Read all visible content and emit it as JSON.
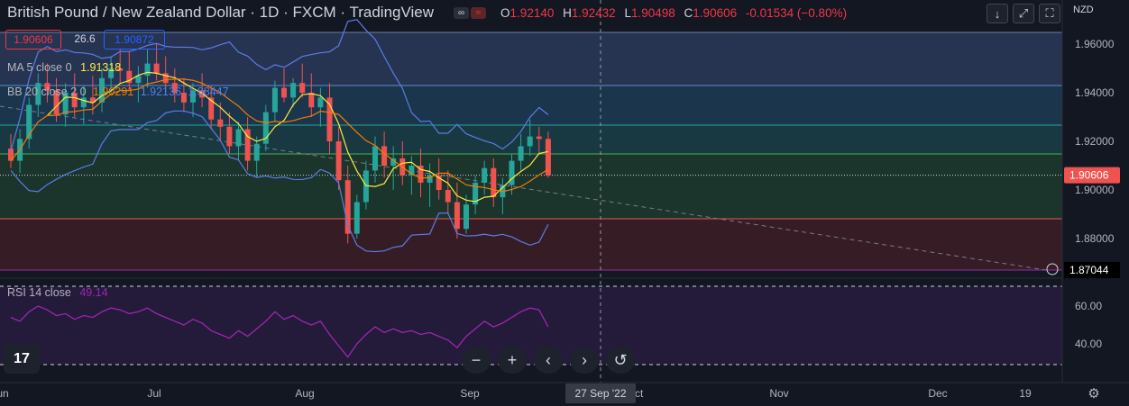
{
  "header": {
    "title": "British Pound / New Zealand Dollar · 1D · FXCM · TradingView",
    "ohlc": {
      "o_label": "O",
      "o": "1.92140",
      "h_label": "H",
      "h": "1.92432",
      "l_label": "L",
      "l": "1.90498",
      "c_label": "C",
      "c": "1.90606",
      "change": "-0.01534 (−0.80%)"
    }
  },
  "price_boxes": {
    "sell": "1.90606",
    "spread": "26.6",
    "buy": "1.90872"
  },
  "indicators": {
    "ma": {
      "label": "MA 5 close 0",
      "value": "1.91318"
    },
    "bb": {
      "label": "BB 20 close 2 0",
      "v1": "1.90291",
      "v2": "1.92136",
      "v3": "1.88447"
    },
    "rsi": {
      "label": "RSI 14 close",
      "value": "49.14"
    }
  },
  "axis": {
    "currency": "NZD",
    "price_ticks": [
      "1.96000",
      "1.94000",
      "1.92000",
      "1.90000",
      "1.88000"
    ],
    "rsi_ticks": [
      "60.00",
      "40.00"
    ],
    "last_price": "1.90606",
    "line_price": "1.87044",
    "time_ticks": [
      "Jun",
      "Jul",
      "Aug",
      "Sep",
      "Oct",
      "Nov",
      "Dec",
      "19"
    ],
    "crosshair_date": "27 Sep '22"
  },
  "colors": {
    "bg": "#131722",
    "up": "#26a69a",
    "down": "#ef5350",
    "ma": "#ffeb3b",
    "bb": "#5b7ce6",
    "basis": "#f57c00",
    "rsi": "#9c27b0"
  },
  "chart_data": {
    "type": "candlestick",
    "series": "GBP/NZD daily",
    "ohlc": [
      [
        1.917,
        1.923,
        1.909,
        1.912
      ],
      [
        1.912,
        1.925,
        1.907,
        1.921
      ],
      [
        1.921,
        1.938,
        1.917,
        1.935
      ],
      [
        1.935,
        1.948,
        1.93,
        1.944
      ],
      [
        1.944,
        1.952,
        1.936,
        1.941
      ],
      [
        1.941,
        1.946,
        1.928,
        1.931
      ],
      [
        1.931,
        1.944,
        1.926,
        1.94
      ],
      [
        1.94,
        1.948,
        1.93,
        1.934
      ],
      [
        1.934,
        1.943,
        1.927,
        1.938
      ],
      [
        1.938,
        1.947,
        1.931,
        1.936
      ],
      [
        1.936,
        1.95,
        1.932,
        1.946
      ],
      [
        1.946,
        1.955,
        1.94,
        1.95
      ],
      [
        1.95,
        1.958,
        1.944,
        1.949
      ],
      [
        1.949,
        1.957,
        1.941,
        1.944
      ],
      [
        1.944,
        1.951,
        1.936,
        1.947
      ],
      [
        1.947,
        1.958,
        1.942,
        1.952
      ],
      [
        1.952,
        1.96,
        1.945,
        1.948
      ],
      [
        1.948,
        1.955,
        1.94,
        1.944
      ],
      [
        1.944,
        1.95,
        1.936,
        1.94
      ],
      [
        1.94,
        1.946,
        1.932,
        1.936
      ],
      [
        1.936,
        1.944,
        1.93,
        1.941
      ],
      [
        1.941,
        1.948,
        1.934,
        1.938
      ],
      [
        1.938,
        1.943,
        1.925,
        1.929
      ],
      [
        1.929,
        1.936,
        1.92,
        1.926
      ],
      [
        1.926,
        1.932,
        1.915,
        1.918
      ],
      [
        1.918,
        1.928,
        1.912,
        1.925
      ],
      [
        1.925,
        1.93,
        1.908,
        1.912
      ],
      [
        1.912,
        1.922,
        1.905,
        1.919
      ],
      [
        1.919,
        1.935,
        1.916,
        1.932
      ],
      [
        1.932,
        1.945,
        1.928,
        1.942
      ],
      [
        1.942,
        1.95,
        1.936,
        1.938
      ],
      [
        1.938,
        1.946,
        1.934,
        1.944
      ],
      [
        1.944,
        1.952,
        1.938,
        1.94
      ],
      [
        1.94,
        1.948,
        1.93,
        1.934
      ],
      [
        1.934,
        1.942,
        1.926,
        1.938
      ],
      [
        1.938,
        1.944,
        1.915,
        1.92
      ],
      [
        1.92,
        1.926,
        1.9,
        1.904
      ],
      [
        1.904,
        1.91,
        1.878,
        1.882
      ],
      [
        1.882,
        1.898,
        1.88,
        1.895
      ],
      [
        1.895,
        1.912,
        1.892,
        1.908
      ],
      [
        1.908,
        1.922,
        1.903,
        1.918
      ],
      [
        1.918,
        1.924,
        1.905,
        1.91
      ],
      [
        1.91,
        1.918,
        1.9,
        1.913
      ],
      [
        1.913,
        1.92,
        1.902,
        1.906
      ],
      [
        1.906,
        1.914,
        1.898,
        1.91
      ],
      [
        1.91,
        1.917,
        1.897,
        1.903
      ],
      [
        1.903,
        1.911,
        1.893,
        1.906
      ],
      [
        1.906,
        1.913,
        1.896,
        1.9
      ],
      [
        1.9,
        1.908,
        1.89,
        1.895
      ],
      [
        1.895,
        1.903,
        1.88,
        1.884
      ],
      [
        1.884,
        1.898,
        1.882,
        1.894
      ],
      [
        1.894,
        1.906,
        1.89,
        1.903
      ],
      [
        1.903,
        1.912,
        1.898,
        1.909
      ],
      [
        1.909,
        1.913,
        1.893,
        1.897
      ],
      [
        1.897,
        1.905,
        1.89,
        1.902
      ],
      [
        1.902,
        1.915,
        1.898,
        1.912
      ],
      [
        1.912,
        1.923,
        1.908,
        1.918
      ],
      [
        1.918,
        1.929,
        1.914,
        1.922
      ],
      [
        1.922,
        1.926,
        1.915,
        1.921
      ],
      [
        1.921,
        1.924,
        1.905,
        1.906
      ]
    ],
    "rsi_values": [
      54,
      52,
      57,
      60,
      58,
      55,
      56,
      53,
      55,
      54,
      57,
      59,
      58,
      56,
      57,
      59,
      56,
      54,
      52,
      50,
      53,
      51,
      47,
      45,
      43,
      47,
      44,
      48,
      52,
      57,
      53,
      55,
      52,
      50,
      52,
      45,
      39,
      33,
      40,
      45,
      49,
      46,
      48,
      46,
      47,
      45,
      46,
      44,
      42,
      38,
      44,
      48,
      52,
      49,
      51,
      54,
      57,
      59,
      58,
      49
    ]
  },
  "buttons": {
    "minus": "−",
    "plus": "+",
    "prev": "‹",
    "next": "›",
    "reset": "↺"
  },
  "logo": "17"
}
